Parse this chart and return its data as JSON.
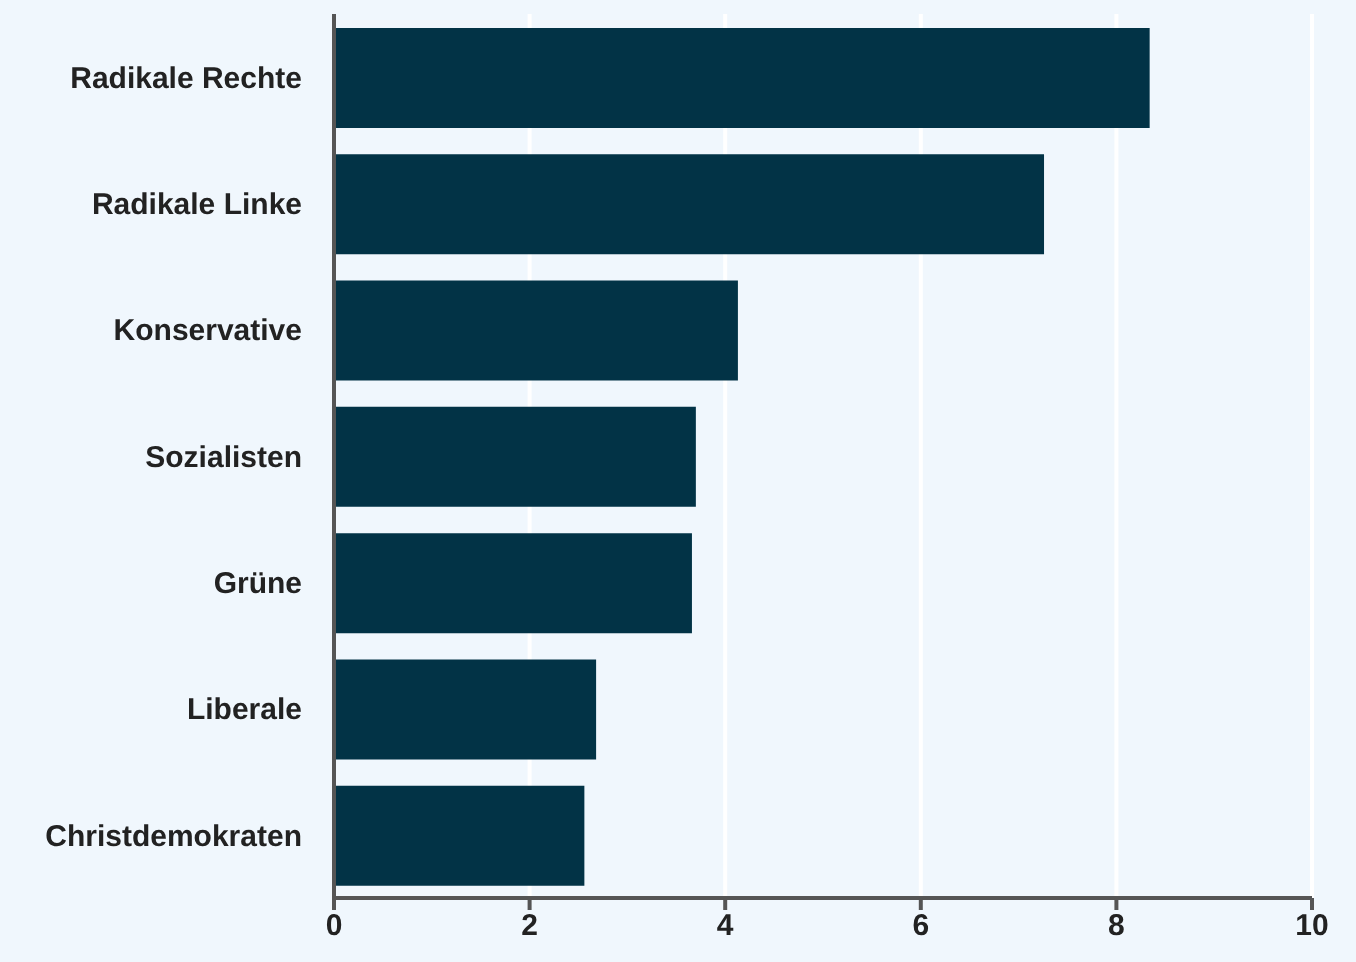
{
  "chart_data": {
    "type": "bar",
    "orientation": "horizontal",
    "categories": [
      "Radikale Rechte",
      "Radikale Linke",
      "Konservative",
      "Sozialisten",
      "Grüne",
      "Liberale",
      "Christdemokraten"
    ],
    "values": [
      8.34,
      7.26,
      4.13,
      3.7,
      3.66,
      2.68,
      2.56
    ],
    "color": "#023346",
    "xlim": [
      0,
      10
    ],
    "xticks": [
      0,
      2,
      4,
      6,
      8,
      10
    ],
    "grid": "x"
  }
}
